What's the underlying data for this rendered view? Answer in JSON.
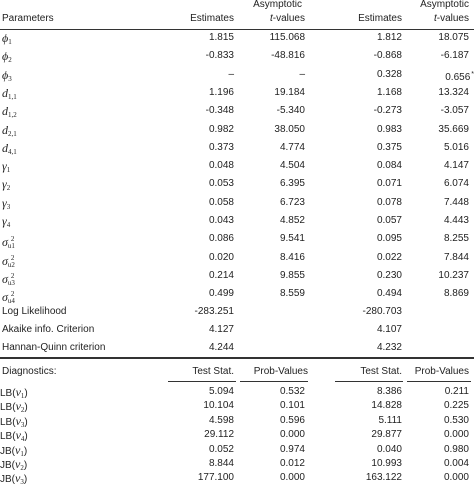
{
  "header": {
    "asym_top_1": "Asymptotic",
    "asym_top_2": "Asymptotic",
    "col0": "Parameters",
    "col1": "Estimates",
    "col2_italic": "t",
    "col2_rest": "-values",
    "col3": "Estimates",
    "col4_italic": "t",
    "col4_rest": "-values"
  },
  "params": [
    {
      "sym": "ϕ",
      "sub": "1",
      "sup": "",
      "e1": "1.815",
      "t1": "115.068",
      "e2": "1.812",
      "t2": "18.075",
      "star": ""
    },
    {
      "sym": "ϕ",
      "sub": "2",
      "sup": "",
      "e1": "-0.833",
      "t1": "-48.816",
      "e2": "-0.868",
      "t2": "-6.187",
      "star": ""
    },
    {
      "sym": "ϕ",
      "sub": "3",
      "sup": "",
      "e1": "–",
      "t1": "–",
      "e2": "0.328",
      "t2": "0.656",
      "star": "*"
    },
    {
      "sym": "d",
      "sub": "1,1",
      "sup": "",
      "e1": "1.196",
      "t1": "19.184",
      "e2": "1.168",
      "t2": "13.324",
      "star": ""
    },
    {
      "sym": "d",
      "sub": "1,2",
      "sup": "",
      "e1": "-0.348",
      "t1": "-5.340",
      "e2": "-0.273",
      "t2": "-3.057",
      "star": ""
    },
    {
      "sym": "d",
      "sub": "2,1",
      "sup": "",
      "e1": "0.982",
      "t1": "38.050",
      "e2": "0.983",
      "t2": "35.669",
      "star": ""
    },
    {
      "sym": "d",
      "sub": "4,1",
      "sup": "",
      "e1": "0.373",
      "t1": "4.774",
      "e2": "0.375",
      "t2": "5.016",
      "star": ""
    },
    {
      "sym": "γ",
      "sub": "1",
      "sup": "",
      "e1": "0.048",
      "t1": "4.504",
      "e2": "0.084",
      "t2": "4.147",
      "star": ""
    },
    {
      "sym": "γ",
      "sub": "2",
      "sup": "",
      "e1": "0.053",
      "t1": "6.395",
      "e2": "0.071",
      "t2": "6.074",
      "star": ""
    },
    {
      "sym": "γ",
      "sub": "3",
      "sup": "",
      "e1": "0.058",
      "t1": "6.723",
      "e2": "0.078",
      "t2": "7.448",
      "star": ""
    },
    {
      "sym": "γ",
      "sub": "4",
      "sup": "",
      "e1": "0.043",
      "t1": "4.852",
      "e2": "0.057",
      "t2": "4.443",
      "star": ""
    },
    {
      "sym": "σ",
      "sub": "u1",
      "sup": "2",
      "e1": "0.086",
      "t1": "9.541",
      "e2": "0.095",
      "t2": "8.255",
      "star": ""
    },
    {
      "sym": "σ",
      "sub": "u2",
      "sup": "2",
      "e1": "0.020",
      "t1": "8.416",
      "e2": "0.022",
      "t2": "7.844",
      "star": ""
    },
    {
      "sym": "σ",
      "sub": "u3",
      "sup": "2",
      "e1": "0.214",
      "t1": "9.855",
      "e2": "0.230",
      "t2": "10.237",
      "star": ""
    },
    {
      "sym": "σ",
      "sub": "u4",
      "sup": "2",
      "e1": "0.499",
      "t1": "8.559",
      "e2": "0.494",
      "t2": "8.869",
      "star": ""
    }
  ],
  "summary": [
    {
      "label": "Log Likelihood",
      "v1": "-283.251",
      "v2": "-280.703"
    },
    {
      "label": "Akaike info. Criterion",
      "v1": "4.127",
      "v2": "4.107"
    },
    {
      "label": "Hannan-Quinn criterion",
      "v1": "4.244",
      "v2": "4.232"
    }
  ],
  "diag_header": {
    "col0": "Diagnostics:",
    "col1": "Test Stat.",
    "col2": "Prob-Values",
    "col3": "Test Stat.",
    "col4": "Prob-Values"
  },
  "diagnostics": [
    {
      "pre": "LB(",
      "sym": "ν",
      "sub": "1",
      "post": ")",
      "s1": "5.094",
      "p1": "0.532",
      "s2": "8.386",
      "p2": "0.211"
    },
    {
      "pre": "LB(",
      "sym": "ν",
      "sub": "2",
      "post": ")",
      "s1": "10.104",
      "p1": "0.101",
      "s2": "14.828",
      "p2": "0.225"
    },
    {
      "pre": "LB(",
      "sym": "ν",
      "sub": "3",
      "post": ")",
      "s1": "4.598",
      "p1": "0.596",
      "s2": "5.111",
      "p2": "0.530"
    },
    {
      "pre": "LB(",
      "sym": "ν",
      "sub": "4",
      "post": ")",
      "s1": "29.112",
      "p1": "0.000",
      "s2": "29.877",
      "p2": "0.000"
    },
    {
      "pre": "JB(",
      "sym": "ν",
      "sub": "1",
      "post": ")",
      "s1": "0.052",
      "p1": "0.974",
      "s2": "0.040",
      "p2": "0.980"
    },
    {
      "pre": "JB(",
      "sym": "ν",
      "sub": "2",
      "post": ")",
      "s1": "8.844",
      "p1": "0.012",
      "s2": "10.993",
      "p2": "0.004"
    },
    {
      "pre": "JB(",
      "sym": "ν",
      "sub": "3",
      "post": ")",
      "s1": "177.100",
      "p1": "0.000",
      "s2": "163.122",
      "p2": "0.000"
    }
  ]
}
